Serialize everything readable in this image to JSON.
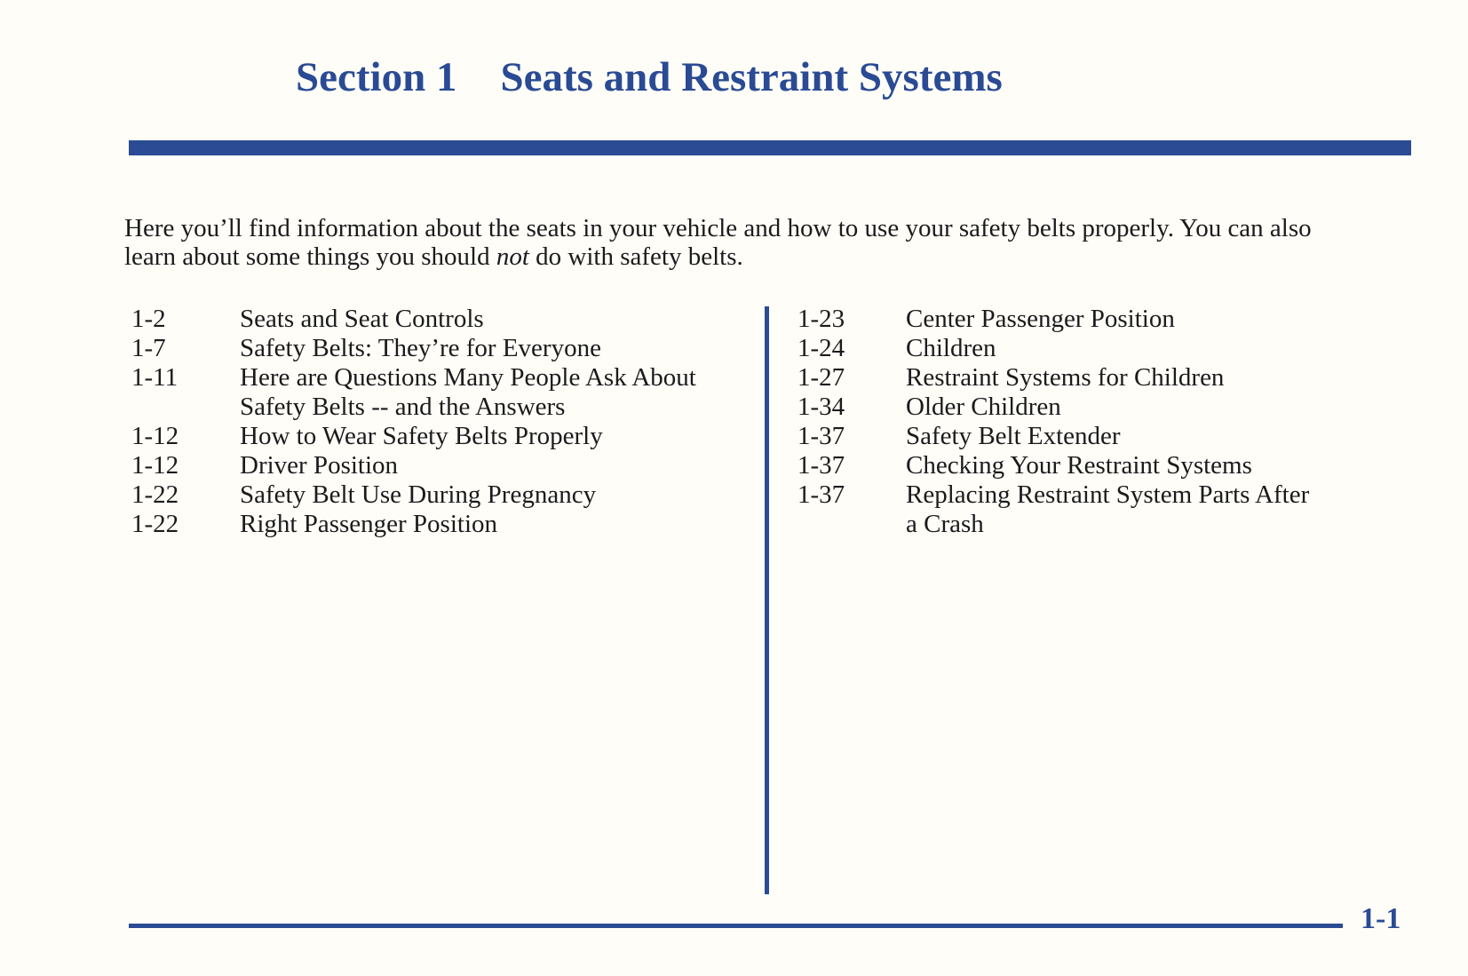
{
  "header": {
    "section_label": "Section 1",
    "section_title": "Seats and Restraint Systems"
  },
  "intro": {
    "line1": "Here you’ll find information about the seats in your vehicle and how to use your safety belts properly. You can also",
    "line2_before": "learn about some things you should ",
    "line2_italic": "not",
    "line2_after": " do with safety belts."
  },
  "toc": {
    "left_column": [
      {
        "page": "1-2",
        "title_lines": [
          "Seats and Seat Controls"
        ]
      },
      {
        "page": "1-7",
        "title_lines": [
          "Safety Belts: They’re for Everyone"
        ]
      },
      {
        "page": "1-11",
        "title_lines": [
          "Here are Questions Many People Ask About",
          "Safety Belts -- and the Answers"
        ]
      },
      {
        "page": "1-12",
        "title_lines": [
          "How to Wear Safety Belts Properly"
        ]
      },
      {
        "page": "1-12",
        "title_lines": [
          "Driver Position"
        ]
      },
      {
        "page": "1-22",
        "title_lines": [
          "Safety Belt Use During Pregnancy"
        ]
      },
      {
        "page": "1-22",
        "title_lines": [
          "Right Passenger Position"
        ]
      }
    ],
    "right_column": [
      {
        "page": "1-23",
        "title_lines": [
          "Center Passenger Position"
        ]
      },
      {
        "page": "1-24",
        "title_lines": [
          "Children"
        ]
      },
      {
        "page": "1-27",
        "title_lines": [
          "Restraint Systems for Children"
        ]
      },
      {
        "page": "1-34",
        "title_lines": [
          "Older Children"
        ]
      },
      {
        "page": "1-37",
        "title_lines": [
          "Safety Belt Extender"
        ]
      },
      {
        "page": "1-37",
        "title_lines": [
          "Checking Your Restraint Systems"
        ]
      },
      {
        "page": "1-37",
        "title_lines": [
          "Replacing Restraint System Parts After",
          "a Crash"
        ]
      }
    ]
  },
  "footer": {
    "page_number": "1-1"
  },
  "colors": {
    "accent_blue": "#2b4c94",
    "title_blue": "#2a4b94",
    "text": "#1b1b1b",
    "background": "#fffdf8"
  }
}
